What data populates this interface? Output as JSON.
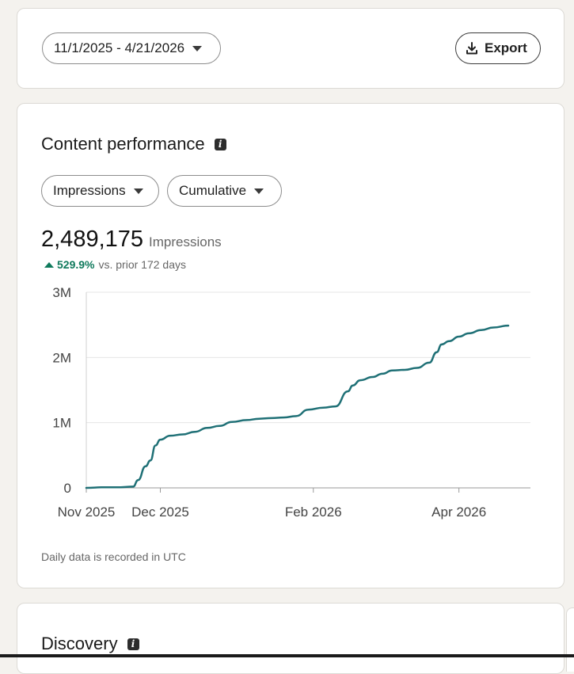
{
  "filters": {
    "date_range": "11/1/2025 - 4/21/2026",
    "export_label": "Export"
  },
  "performance": {
    "title": "Content performance",
    "metric_select": "Impressions",
    "mode_select": "Cumulative",
    "total_value": "2,489,175",
    "total_unit": "Impressions",
    "change_pct": "529.9%",
    "change_label": "vs. prior 172 days",
    "footnote": "Daily data is recorded in UTC",
    "accent_color": "#1f7076",
    "positive_color": "#0f7a5c"
  },
  "chart_data": {
    "type": "line",
    "title": "",
    "xlabel": "",
    "ylabel": "",
    "y_ticks": [
      "0",
      "1M",
      "2M",
      "3M"
    ],
    "x_ticks": [
      "Nov 2025",
      "Dec 2025",
      "Feb 2026",
      "Apr 2026"
    ],
    "ylim": [
      0,
      3000000
    ],
    "grid": true,
    "series": [
      {
        "x": [
          "2025-11-01",
          "2025-11-08",
          "2025-11-15",
          "2025-11-20",
          "2025-11-22",
          "2025-11-25",
          "2025-11-27",
          "2025-11-29",
          "2025-12-01",
          "2025-12-05",
          "2025-12-10",
          "2025-12-15",
          "2025-12-20",
          "2025-12-25",
          "2025-12-30",
          "2026-01-05",
          "2026-01-10",
          "2026-01-15",
          "2026-01-20",
          "2026-01-25",
          "2026-01-30",
          "2026-02-05",
          "2026-02-10",
          "2026-02-15",
          "2026-02-17",
          "2026-02-20",
          "2026-02-25",
          "2026-03-01",
          "2026-03-05",
          "2026-03-10",
          "2026-03-15",
          "2026-03-20",
          "2026-03-23",
          "2026-03-25",
          "2026-03-28",
          "2026-04-01",
          "2026-04-05",
          "2026-04-10",
          "2026-04-15",
          "2026-04-21"
        ],
        "y": [
          0,
          10000,
          10000,
          20000,
          120000,
          330000,
          420000,
          650000,
          740000,
          800000,
          820000,
          860000,
          920000,
          950000,
          1010000,
          1040000,
          1060000,
          1070000,
          1080000,
          1100000,
          1200000,
          1230000,
          1250000,
          1480000,
          1570000,
          1650000,
          1700000,
          1750000,
          1800000,
          1810000,
          1840000,
          1920000,
          2080000,
          2200000,
          2250000,
          2320000,
          2370000,
          2420000,
          2460000,
          2489175
        ]
      }
    ]
  },
  "discovery": {
    "title": "Discovery"
  }
}
